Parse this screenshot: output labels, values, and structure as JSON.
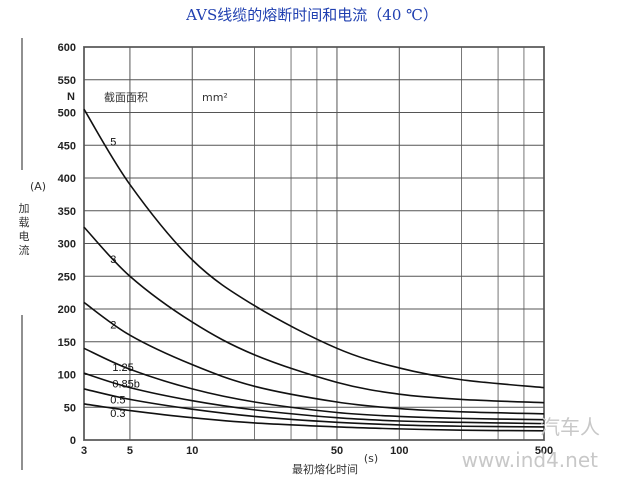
{
  "chart_data": {
    "type": "line",
    "title": "AVS线缆的熔断时间和电流（40 ℃）",
    "xlabel": "最初熔化时间",
    "xunit": "(s)",
    "ylabel": "加载电流",
    "yunit": "(A)",
    "legend_header": "截面面积",
    "legend_unit": "mm²",
    "x_scale": "log",
    "xlim": [
      3,
      500
    ],
    "ylim": [
      0,
      600
    ],
    "x_ticks": [
      3,
      5,
      10,
      50,
      100,
      500
    ],
    "y_ticks": [
      0,
      50,
      100,
      150,
      200,
      250,
      300,
      350,
      400,
      450,
      500,
      550,
      600
    ],
    "y_axis_break_label": "N",
    "grid": true,
    "series": [
      {
        "name": "5",
        "x": [
          3,
          5,
          10,
          20,
          50,
          100,
          200,
          500
        ],
        "values": [
          505,
          390,
          275,
          205,
          140,
          110,
          92,
          80
        ]
      },
      {
        "name": "3",
        "x": [
          3,
          5,
          10,
          20,
          50,
          100,
          200,
          500
        ],
        "values": [
          325,
          250,
          180,
          130,
          88,
          70,
          62,
          57
        ]
      },
      {
        "name": "2",
        "x": [
          3,
          5,
          10,
          20,
          50,
          100,
          200,
          500
        ],
        "values": [
          210,
          160,
          115,
          82,
          58,
          48,
          43,
          40
        ]
      },
      {
        "name": "1.25",
        "x": [
          3,
          5,
          10,
          20,
          50,
          100,
          200,
          500
        ],
        "values": [
          140,
          108,
          78,
          58,
          42,
          36,
          33,
          31
        ]
      },
      {
        "name": "0.85b",
        "x": [
          3,
          5,
          10,
          20,
          50,
          100,
          200,
          500
        ],
        "values": [
          102,
          80,
          60,
          46,
          34,
          29,
          27,
          25
        ]
      },
      {
        "name": "0.5",
        "x": [
          3,
          5,
          10,
          20,
          50,
          100,
          200,
          500
        ],
        "values": [
          78,
          62,
          47,
          36,
          27,
          23,
          21,
          20
        ]
      },
      {
        "name": "0.3",
        "x": [
          3,
          5,
          10,
          20,
          50,
          100,
          200,
          500
        ],
        "values": [
          55,
          45,
          34,
          26,
          20,
          17,
          15,
          14
        ]
      }
    ]
  },
  "watermark": "www.ind4.net",
  "watermark_brand": "汽车人",
  "colors": {
    "title": "#1f3fb0",
    "line": "#111111",
    "grid": "#555555"
  }
}
